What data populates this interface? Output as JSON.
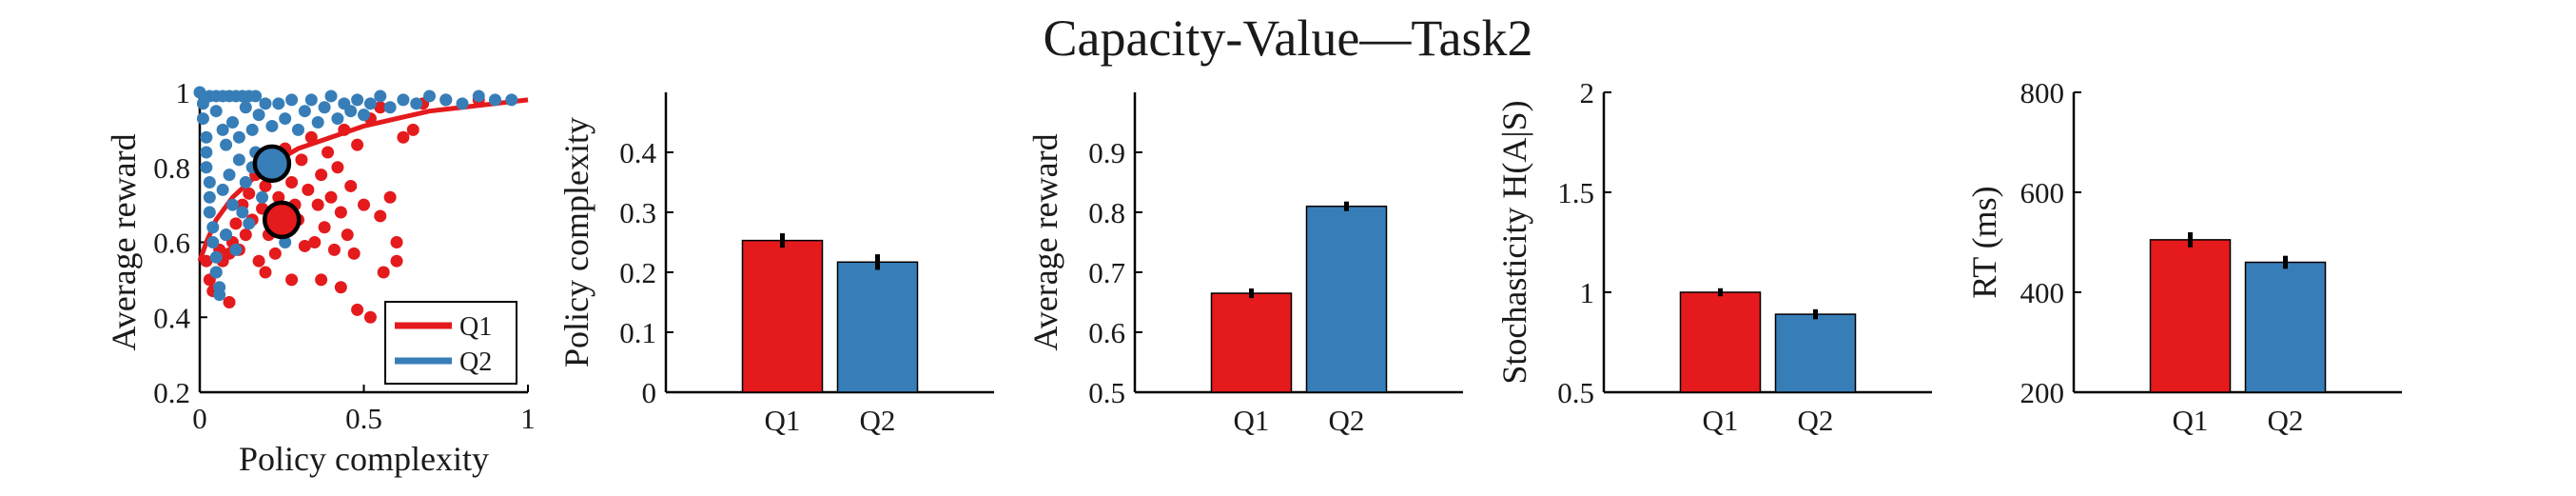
{
  "figure": {
    "title": "Capacity-Value—Task2"
  },
  "colors": {
    "Q1": "#e41a1c",
    "Q2": "#377eb8",
    "errorbar": "#000000",
    "axis": "#000000"
  },
  "chart_data": [
    {
      "type": "scatter",
      "xlabel": "Policy complexity",
      "ylabel": "Average reward",
      "xlim": [
        0,
        1
      ],
      "ylim": [
        0.2,
        1
      ],
      "xticks": [
        0,
        0.5,
        1
      ],
      "xtick_labels": [
        "0",
        "0.5",
        "1"
      ],
      "yticks": [
        0.2,
        0.4,
        0.6,
        0.8,
        1
      ],
      "ytick_labels": [
        "0.2",
        "0.4",
        "0.6",
        "0.8",
        "1"
      ],
      "legend": {
        "placement": "bottom-right",
        "entries": [
          "Q1",
          "Q2"
        ]
      },
      "series": [
        {
          "name": "Q1",
          "color": "#e41a1c",
          "points": [
            [
              0.02,
              0.55
            ],
            [
              0.03,
              0.5
            ],
            [
              0.04,
              0.47
            ],
            [
              0.05,
              0.52
            ],
            [
              0.06,
              0.58
            ],
            [
              0.07,
              0.55
            ],
            [
              0.08,
              0.62
            ],
            [
              0.09,
              0.57
            ],
            [
              0.1,
              0.6
            ],
            [
              0.11,
              0.65
            ],
            [
              0.12,
              0.58
            ],
            [
              0.13,
              0.7
            ],
            [
              0.14,
              0.62
            ],
            [
              0.15,
              0.73
            ],
            [
              0.16,
              0.66
            ],
            [
              0.17,
              0.78
            ],
            [
              0.18,
              0.55
            ],
            [
              0.19,
              0.69
            ],
            [
              0.2,
              0.75
            ],
            [
              0.21,
              0.62
            ],
            [
              0.22,
              0.8
            ],
            [
              0.23,
              0.57
            ],
            [
              0.24,
              0.72
            ],
            [
              0.25,
              0.68
            ],
            [
              0.26,
              0.85
            ],
            [
              0.27,
              0.63
            ],
            [
              0.28,
              0.76
            ],
            [
              0.29,
              0.7
            ],
            [
              0.3,
              0.66
            ],
            [
              0.31,
              0.82
            ],
            [
              0.32,
              0.59
            ],
            [
              0.33,
              0.74
            ],
            [
              0.34,
              0.88
            ],
            [
              0.35,
              0.6
            ],
            [
              0.36,
              0.7
            ],
            [
              0.37,
              0.78
            ],
            [
              0.38,
              0.64
            ],
            [
              0.39,
              0.84
            ],
            [
              0.4,
              0.72
            ],
            [
              0.41,
              0.58
            ],
            [
              0.42,
              0.8
            ],
            [
              0.43,
              0.68
            ],
            [
              0.44,
              0.9
            ],
            [
              0.45,
              0.62
            ],
            [
              0.46,
              0.75
            ],
            [
              0.47,
              0.57
            ],
            [
              0.48,
              0.86
            ],
            [
              0.5,
              0.7
            ],
            [
              0.52,
              0.93
            ],
            [
              0.55,
              0.67
            ],
            [
              0.58,
              0.72
            ],
            [
              0.6,
              0.6
            ],
            [
              0.62,
              0.88
            ],
            [
              0.65,
              0.9
            ],
            [
              0.48,
              0.42
            ],
            [
              0.52,
              0.4
            ],
            [
              0.56,
              0.52
            ],
            [
              0.6,
              0.55
            ],
            [
              0.43,
              0.48
            ],
            [
              0.37,
              0.5
            ],
            [
              0.2,
              0.52
            ],
            [
              0.28,
              0.5
            ],
            [
              0.09,
              0.44
            ],
            [
              0.55,
              0.96
            ],
            [
              0.68,
              0.97
            ],
            [
              0.75,
              0.98
            ],
            [
              0.85,
              0.98
            ]
          ]
        },
        {
          "name": "Q2",
          "color": "#377eb8",
          "points": [
            [
              0,
              1
            ],
            [
              0.01,
              0.97
            ],
            [
              0.01,
              0.93
            ],
            [
              0.02,
              0.88
            ],
            [
              0.02,
              0.84
            ],
            [
              0.02,
              0.8
            ],
            [
              0.03,
              0.76
            ],
            [
              0.03,
              0.72
            ],
            [
              0.03,
              0.68
            ],
            [
              0.04,
              0.64
            ],
            [
              0.04,
              0.6
            ],
            [
              0.05,
              0.56
            ],
            [
              0.05,
              0.52
            ],
            [
              0.06,
              0.48
            ],
            [
              0.06,
              0.46
            ],
            [
              0.03,
              0.99
            ],
            [
              0.05,
              0.99
            ],
            [
              0.07,
              0.99
            ],
            [
              0.09,
              0.99
            ],
            [
              0.11,
              0.99
            ],
            [
              0.13,
              0.99
            ],
            [
              0.15,
              0.99
            ],
            [
              0.17,
              0.99
            ],
            [
              0.05,
              0.95
            ],
            [
              0.07,
              0.9
            ],
            [
              0.08,
              0.86
            ],
            [
              0.1,
              0.92
            ],
            [
              0.12,
              0.88
            ],
            [
              0.14,
              0.96
            ],
            [
              0.16,
              0.9
            ],
            [
              0.18,
              0.94
            ],
            [
              0.2,
              0.97
            ],
            [
              0.22,
              0.91
            ],
            [
              0.24,
              0.97
            ],
            [
              0.26,
              0.93
            ],
            [
              0.28,
              0.98
            ],
            [
              0.3,
              0.9
            ],
            [
              0.32,
              0.95
            ],
            [
              0.34,
              0.98
            ],
            [
              0.36,
              0.92
            ],
            [
              0.38,
              0.96
            ],
            [
              0.4,
              0.99
            ],
            [
              0.42,
              0.93
            ],
            [
              0.44,
              0.97
            ],
            [
              0.46,
              0.95
            ],
            [
              0.48,
              0.98
            ],
            [
              0.5,
              0.94
            ],
            [
              0.52,
              0.97
            ],
            [
              0.55,
              0.99
            ],
            [
              0.58,
              0.96
            ],
            [
              0.62,
              0.98
            ],
            [
              0.66,
              0.97
            ],
            [
              0.7,
              0.99
            ],
            [
              0.75,
              0.98
            ],
            [
              0.8,
              0.97
            ],
            [
              0.85,
              0.99
            ],
            [
              0.9,
              0.98
            ],
            [
              0.95,
              0.98
            ],
            [
              0.09,
              0.78
            ],
            [
              0.1,
              0.7
            ],
            [
              0.12,
              0.82
            ],
            [
              0.14,
              0.76
            ],
            [
              0.15,
              0.65
            ],
            [
              0.17,
              0.84
            ],
            [
              0.19,
              0.72
            ],
            [
              0.08,
              0.62
            ],
            [
              0.11,
              0.58
            ],
            [
              0.07,
              0.74
            ],
            [
              0.13,
              0.68
            ],
            [
              0.16,
              0.8
            ],
            [
              0.26,
              0.6
            ]
          ]
        },
        {
          "name": "Q1 mean",
          "color": "#e41a1c",
          "mean_point": [
            0.25,
            0.66
          ]
        },
        {
          "name": "Q2 mean",
          "color": "#377eb8",
          "mean_point": [
            0.22,
            0.81
          ]
        }
      ],
      "curve": {
        "color": "#e41a1c",
        "points": [
          [
            0,
            0.55
          ],
          [
            0.02,
            0.6
          ],
          [
            0.05,
            0.66
          ],
          [
            0.1,
            0.72
          ],
          [
            0.15,
            0.76
          ],
          [
            0.2,
            0.8
          ],
          [
            0.3,
            0.85
          ],
          [
            0.4,
            0.88
          ],
          [
            0.5,
            0.91
          ],
          [
            0.6,
            0.93
          ],
          [
            0.7,
            0.95
          ],
          [
            0.8,
            0.96
          ],
          [
            0.9,
            0.97
          ],
          [
            1,
            0.98
          ]
        ]
      }
    },
    {
      "type": "bar",
      "categories": [
        "Q1",
        "Q2"
      ],
      "values": [
        0.253,
        0.217
      ],
      "errors": [
        0.012,
        0.013
      ],
      "ylabel": "Policy complexity",
      "ylim": [
        0,
        0.5
      ],
      "yticks": [
        0,
        0.1,
        0.2,
        0.3,
        0.4
      ],
      "ytick_labels": [
        "0",
        "0.1",
        "0.2",
        "0.3",
        "0.4"
      ]
    },
    {
      "type": "bar",
      "categories": [
        "Q1",
        "Q2"
      ],
      "values": [
        0.665,
        0.81
      ],
      "errors": [
        0.008,
        0.008
      ],
      "ylabel": "Average reward",
      "ylim": [
        0.5,
        1.0
      ],
      "yticks": [
        0.5,
        0.6,
        0.7,
        0.8,
        0.9
      ],
      "ytick_labels": [
        "0.5",
        "0.6",
        "0.7",
        "0.8",
        "0.9"
      ]
    },
    {
      "type": "bar",
      "categories": [
        "Q1",
        "Q2"
      ],
      "values": [
        1.0,
        0.89
      ],
      "errors": [
        0.02,
        0.025
      ],
      "ylabel": "Stochasticity H(A|S)",
      "ylim": [
        0.5,
        2
      ],
      "yticks": [
        0.5,
        1,
        1.5,
        2
      ],
      "ytick_labels": [
        "0.5",
        "1",
        "1.5",
        "2"
      ]
    },
    {
      "type": "bar",
      "categories": [
        "Q1",
        "Q2"
      ],
      "values": [
        505,
        460
      ],
      "errors": [
        15,
        13
      ],
      "ylabel": "RT (ms)",
      "ylim": [
        200,
        800
      ],
      "yticks": [
        200,
        400,
        600,
        800
      ],
      "ytick_labels": [
        "200",
        "400",
        "600",
        "800"
      ]
    }
  ]
}
